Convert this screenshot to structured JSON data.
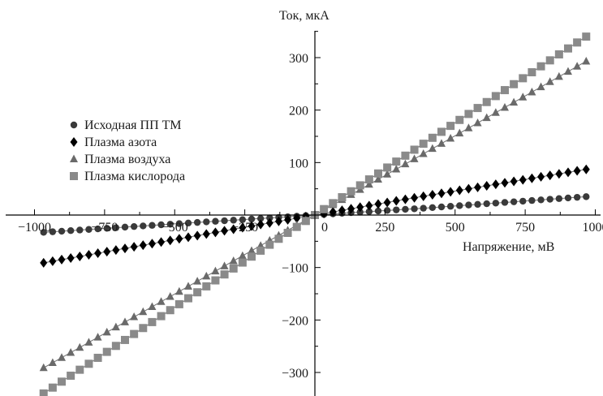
{
  "chart_data": {
    "type": "line",
    "xlabel": "Напряжение, мВ",
    "ylabel": "Ток, мкА",
    "xlim": [
      -1000,
      1000
    ],
    "ylim": [
      -340,
      340
    ],
    "x_ticks": [
      -1000,
      -750,
      -500,
      -250,
      0,
      250,
      500,
      750,
      1000
    ],
    "x_tick_labels": [
      "−1000",
      "−750",
      "−500",
      "−250",
      "0",
      "250",
      "500",
      "750",
      "1000"
    ],
    "y_ticks": [
      -300,
      -200,
      -100,
      100,
      200,
      300
    ],
    "y_tick_labels": [
      "−300",
      "−200",
      "−100",
      "100",
      "200",
      "300"
    ],
    "grid": false,
    "legend_position": "left",
    "series": [
      {
        "name": "Исходная ПП ТМ",
        "marker": "circle",
        "color": "#3a3a3a",
        "x": [
          -967,
          -387,
          -129,
          0,
          129,
          387,
          967
        ],
        "y": [
          -33,
          -13,
          -4.5,
          0,
          4.5,
          13,
          35
        ]
      },
      {
        "name": "Плазма азота",
        "marker": "diamond",
        "color": "#000000",
        "x": [
          -967,
          -322,
          0,
          322,
          967
        ],
        "y": [
          -91,
          -30,
          0,
          30,
          87
        ]
      },
      {
        "name": "Плазма воздуха",
        "marker": "triangle",
        "color": "#6a6a6a",
        "x": [
          -967,
          -322,
          0,
          322,
          967
        ],
        "y": [
          -291,
          -97,
          0,
          97,
          293
        ]
      },
      {
        "name": "Плазма кислорода",
        "marker": "square",
        "color": "#8a8a8a",
        "x": [
          -967,
          -322,
          0,
          322,
          967
        ],
        "y": [
          -340,
          -113,
          0,
          113,
          340
        ]
      }
    ]
  }
}
